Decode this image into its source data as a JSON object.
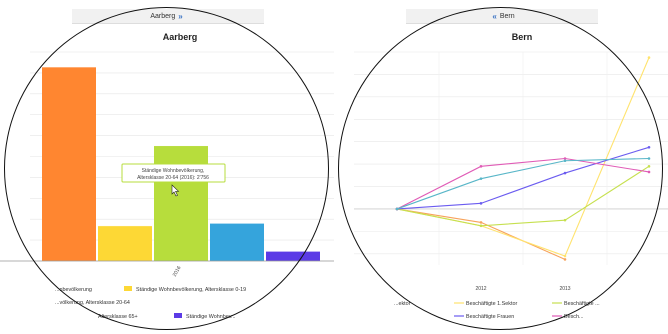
{
  "left": {
    "tab_label": "Aarberg",
    "tab_arrow": "»",
    "tooltip": {
      "line1": "Ständige Wohnbevölkerung,",
      "line2": "Altersklasse 20-64 (2016): 2'756"
    },
    "legend": [
      {
        "label": "...nbevölkerung",
        "color": "#ff8630"
      },
      {
        "label": "Ständige Wohnbevölkerung, Altersklasse 0-19",
        "color": "#fdd835"
      },
      {
        "label": "...völkerung, Altersklasse 20-64",
        "color": "#b7dd3c"
      },
      {
        "label": "Altersklasse 65+",
        "color": "#35a4dc"
      },
      {
        "label": "Ständige Wohnbev...",
        "color": "#5b3be6"
      }
    ]
  },
  "right": {
    "tab_label": "Bern",
    "tab_arrow": "«",
    "legend": [
      {
        "label": "...ektor",
        "color": "#f7a35c"
      },
      {
        "label": "Beschäftigte 1.Sektor",
        "color": "#ffe36e"
      },
      {
        "label": "Beschäftigte ...",
        "color": "#c6e04f"
      },
      {
        "label": "Beschäftigte Frauen",
        "color": "#6b5cf0"
      },
      {
        "label": "Besch...",
        "color": "#e05bb6"
      }
    ]
  },
  "chart_data": [
    {
      "type": "bar",
      "title": "Aarberg",
      "categories": [
        "2016"
      ],
      "series": [
        {
          "color": "#ff8630",
          "values": [
            4640
          ]
        },
        {
          "name": "Ständige Wohnbevölkerung, Altersklasse 0-19",
          "color": "#fdd835",
          "values": [
            840
          ]
        },
        {
          "name": "Ständige Wohnbevölkerung, Altersklasse 20-64",
          "color": "#b7dd3c",
          "values": [
            2756
          ]
        },
        {
          "color": "#35a4dc",
          "values": [
            900
          ]
        },
        {
          "color": "#5b3be6",
          "values": [
            230
          ]
        }
      ],
      "ylim": [
        0,
        5000
      ],
      "grid": true
    },
    {
      "type": "line",
      "title": "Bern",
      "x": [
        "2011",
        "2012",
        "2013",
        "2014"
      ],
      "x_tick_labels": [
        "2012",
        "2013"
      ],
      "series": [
        {
          "color": "#f7a35c",
          "values": [
            0,
            -1.2,
            -4.5,
            null
          ]
        },
        {
          "name": "Beschäftigte 1.Sektor",
          "color": "#ffe36e",
          "values": [
            0,
            -1.5,
            -4.2,
            13.5
          ]
        },
        {
          "color": "#c6e04f",
          "values": [
            0,
            -1.5,
            -1.0,
            3.8
          ]
        },
        {
          "name": "Beschäftigte Frauen",
          "color": "#6b5cf0",
          "values": [
            0,
            0.5,
            3.2,
            5.5
          ]
        },
        {
          "color": "#e05bb6",
          "values": [
            0,
            3.8,
            4.5,
            3.3
          ]
        },
        {
          "color": "#58b6c8",
          "values": [
            0,
            2.7,
            4.3,
            4.5
          ]
        }
      ],
      "ylim": [
        -5,
        14
      ],
      "grid": true
    }
  ]
}
